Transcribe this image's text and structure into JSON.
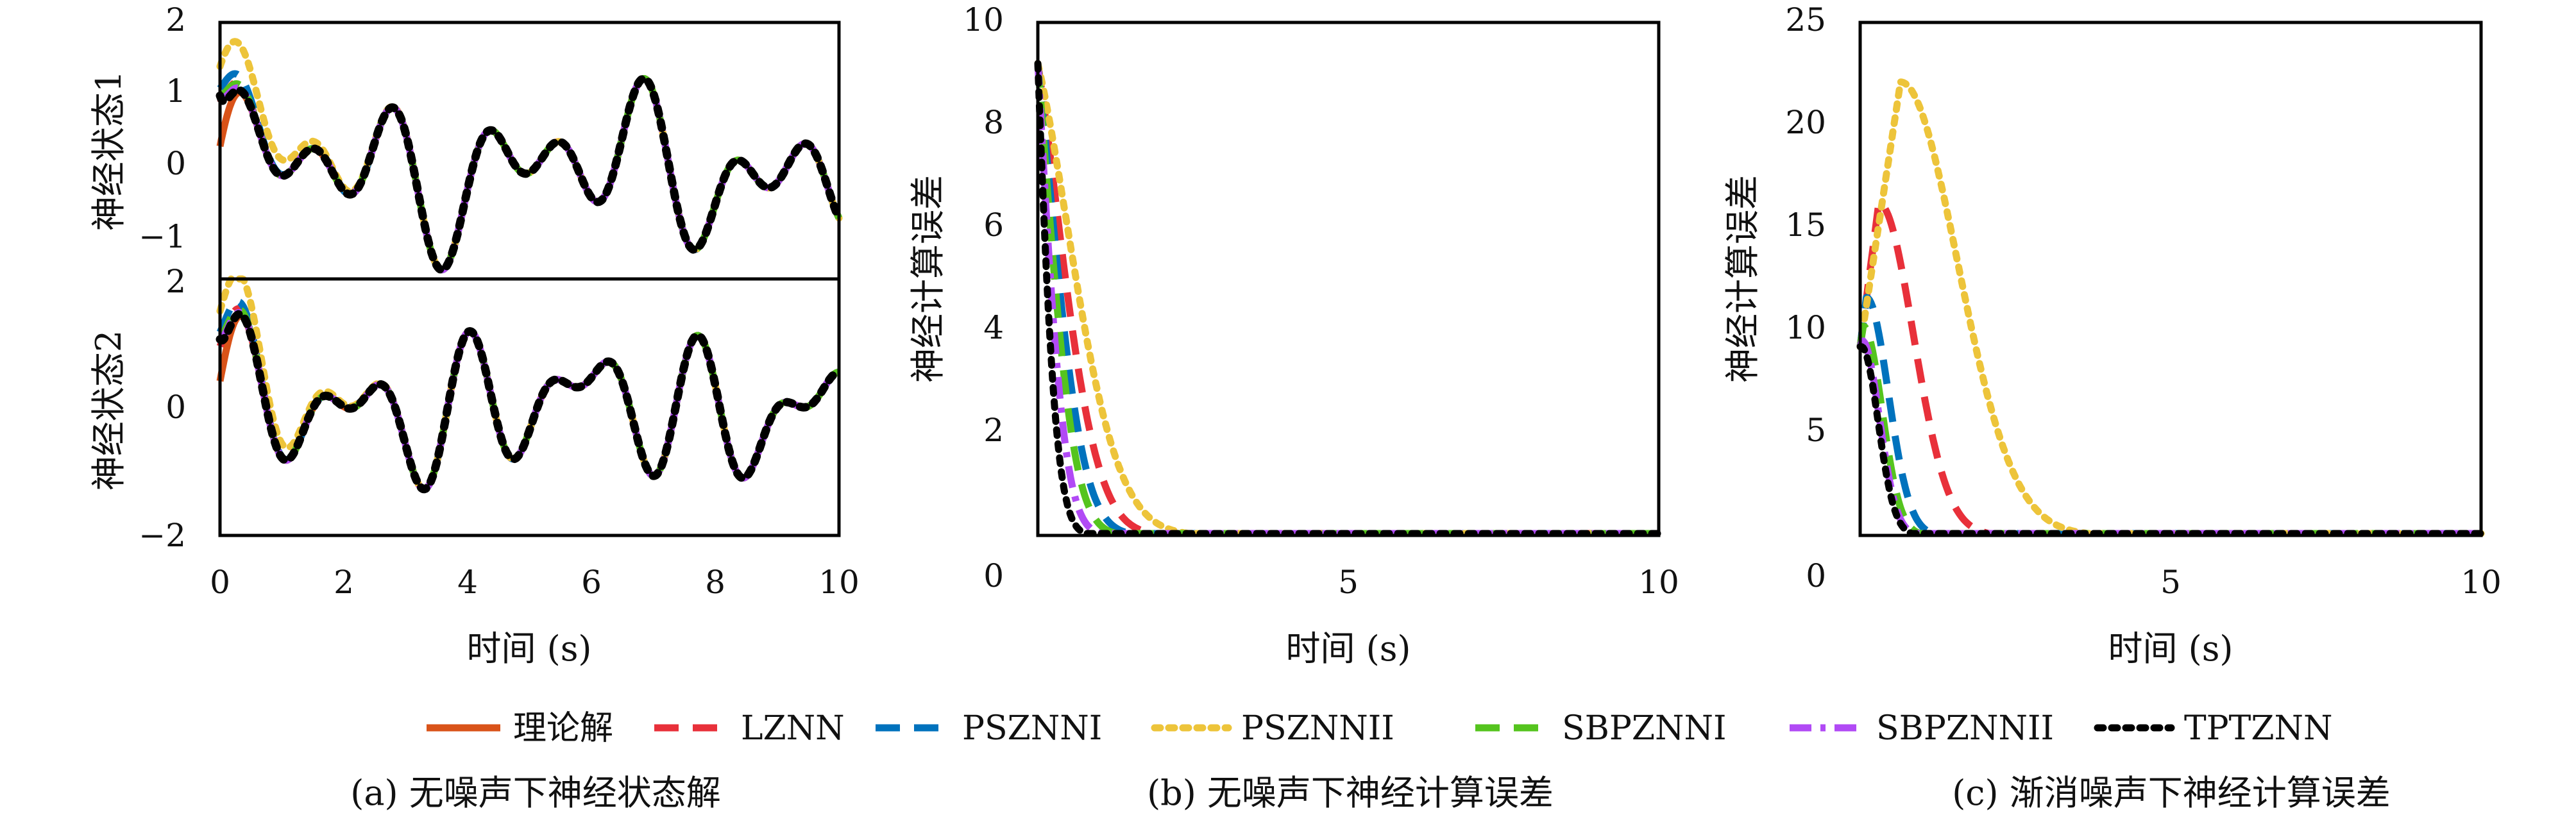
{
  "colors": {
    "theory": "#d95319",
    "lznn": "#e8303a",
    "psznni": "#0072bd",
    "psznnii": "#edc43a",
    "sbpznni": "#55c41e",
    "sbpznnii": "#b14af5",
    "tptznn": "#000000"
  },
  "legend": {
    "placement": "bottom-center",
    "items": [
      {
        "key": "theory",
        "label": "理论解",
        "style": "solid"
      },
      {
        "key": "lznn",
        "label": "LZNN",
        "style": "dash"
      },
      {
        "key": "psznni",
        "label": "PSZNNI",
        "style": "dash"
      },
      {
        "key": "psznnii",
        "label": "PSZNNII",
        "style": "dot"
      },
      {
        "key": "sbpznni",
        "label": "SBPZNNI",
        "style": "dash"
      },
      {
        "key": "sbpznnii",
        "label": "SBPZNNII",
        "style": "dashdot"
      },
      {
        "key": "tptznn",
        "label": "TPTZNN",
        "style": "dot"
      }
    ]
  },
  "chart_data": [
    {
      "type": "line",
      "panel": "a",
      "caption": "(a) 无噪声下神经状态解",
      "xlabel": "时间 (s)",
      "xlim": [
        0,
        10
      ],
      "xticks": [
        "0",
        "2",
        "4",
        "6",
        "8",
        "10"
      ],
      "subplots": [
        {
          "ylabel": "神经状态1",
          "ylim": [
            -1.5,
            2
          ],
          "yticks": [
            "2",
            "1",
            "0",
            "−1"
          ]
        },
        {
          "ylabel": "神经状态2",
          "ylim": [
            -2,
            2
          ],
          "yticks": [
            "2",
            "0",
            "−2"
          ]
        }
      ],
      "description_series": [
        "理论解",
        "LZNN",
        "PSZNNI",
        "PSZNNII",
        "SBPZNNI",
        "SBPZNNII",
        "TPTZNN"
      ]
    },
    {
      "type": "line",
      "panel": "b",
      "caption": "(b) 无噪声下神经计算误差",
      "xlabel": "时间 (s)",
      "ylabel": "神经计算误差",
      "xlim": [
        0,
        10
      ],
      "ylim": [
        0,
        10
      ],
      "xticks": [
        "5",
        "10"
      ],
      "yticks": [
        "10",
        "8",
        "6",
        "4",
        "2",
        "0"
      ],
      "series": [
        {
          "key": "lznn",
          "peak": 9.2,
          "decay": 2.2
        },
        {
          "key": "psznni",
          "peak": 9.2,
          "decay": 3.2
        },
        {
          "key": "psznnii",
          "peak": 9.2,
          "decay": 1.4
        },
        {
          "key": "sbpznni",
          "peak": 9.2,
          "decay": 4.2
        },
        {
          "key": "sbpznnii",
          "peak": 9.2,
          "decay": 6.0
        },
        {
          "key": "tptznn",
          "peak": 9.2,
          "decay": 9.0
        }
      ]
    },
    {
      "type": "line",
      "panel": "c",
      "caption": "(c) 渐消噪声下神经计算误差",
      "xlabel": "时间 (s)",
      "ylabel": "神经计算误差",
      "xlim": [
        0,
        10
      ],
      "ylim": [
        0,
        25
      ],
      "xticks": [
        "5",
        "10"
      ],
      "yticks": [
        "25",
        "20",
        "15",
        "10",
        "5",
        "0"
      ],
      "series": [
        {
          "key": "lznn",
          "peak": 16.2,
          "peak_t": 0.3
        },
        {
          "key": "psznni",
          "peak": 11.6,
          "peak_t": 0.1
        },
        {
          "key": "psznnii",
          "peak": 22.1,
          "peak_t": 0.65
        },
        {
          "key": "sbpznni",
          "peak": 10.2,
          "peak_t": 0.05
        },
        {
          "key": "sbpznnii",
          "peak": 9.5,
          "peak_t": 0.03
        },
        {
          "key": "tptznn",
          "peak": 9.2,
          "peak_t": 0.02
        }
      ]
    }
  ]
}
